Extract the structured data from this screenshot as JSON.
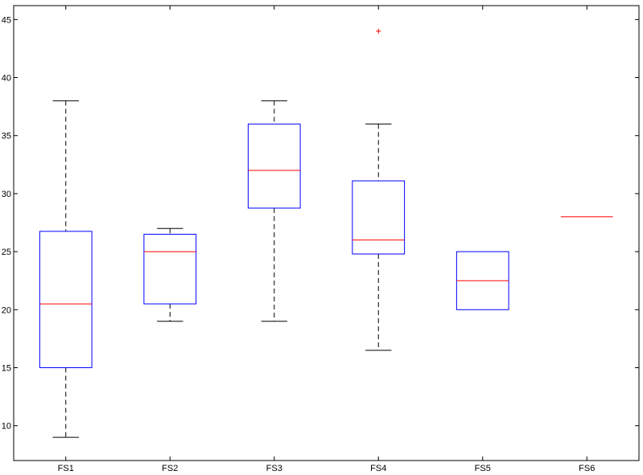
{
  "chart_data": {
    "type": "box",
    "title": "",
    "xlabel": "",
    "ylabel": "",
    "ylim": [
      7,
      46.2
    ],
    "yticks": [
      10,
      15,
      20,
      25,
      30,
      35,
      40,
      45
    ],
    "categories": [
      "FS1",
      "FS2",
      "FS3",
      "FS4",
      "FS5",
      "FS6"
    ],
    "boxes": [
      {
        "label": "FS1",
        "whisker_low": 9,
        "q1": 15,
        "median": 20.5,
        "q3": 26.75,
        "whisker_high": 38,
        "outliers": []
      },
      {
        "label": "FS2",
        "whisker_low": 19,
        "q1": 20.5,
        "median": 25,
        "q3": 26.5,
        "whisker_high": 27,
        "outliers": []
      },
      {
        "label": "FS3",
        "whisker_low": 19,
        "q1": 28.75,
        "median": 32,
        "q3": 36,
        "whisker_high": 38,
        "outliers": []
      },
      {
        "label": "FS4",
        "whisker_low": 16.5,
        "q1": 24.8,
        "median": 26,
        "q3": 31.1,
        "whisker_high": 36,
        "outliers": [
          44
        ]
      },
      {
        "label": "FS5",
        "whisker_low": 20,
        "q1": 20,
        "median": 22.5,
        "q3": 25,
        "whisker_high": 25,
        "outliers": []
      },
      {
        "label": "FS6",
        "whisker_low": 28,
        "q1": 28,
        "median": 28,
        "q3": 28,
        "whisker_high": 28,
        "outliers": []
      }
    ],
    "colors": {
      "box": "#0000ff",
      "median": "#ff0000",
      "whisker": "#000000",
      "outlier": "#ff0000",
      "axes": "#000000"
    },
    "grid": false,
    "legend": "none"
  }
}
